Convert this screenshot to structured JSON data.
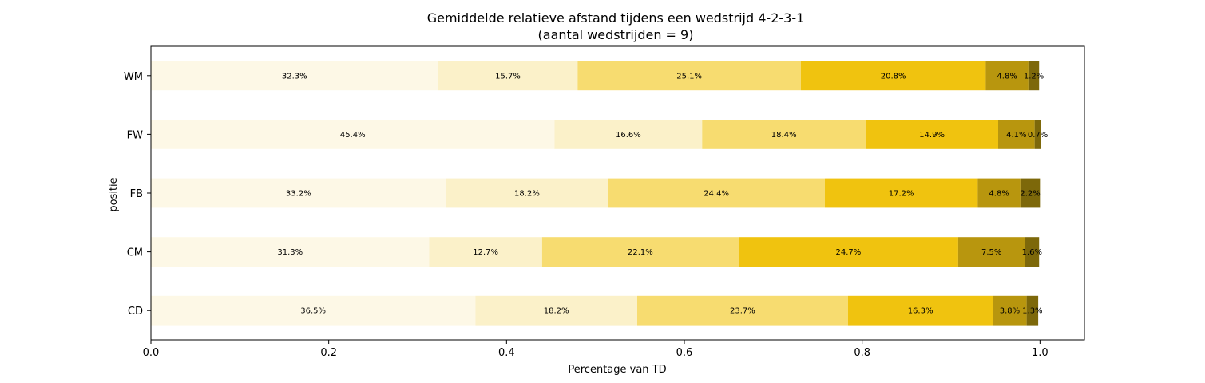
{
  "chart_data": {
    "type": "bar",
    "orientation": "horizontal",
    "stacked": true,
    "title": "Gemiddelde relatieve afstand tijdens een wedstrijd 4-2-3-1",
    "subtitle": "(aantal wedstrijden = 9)",
    "xlabel": "Percentage van TD",
    "ylabel": "positie",
    "xlim": [
      0,
      1.05
    ],
    "xticks": [
      0.0,
      0.2,
      0.4,
      0.6,
      0.8,
      1.0
    ],
    "xtick_labels": [
      "0.0",
      "0.2",
      "0.4",
      "0.6",
      "0.8",
      "1.0"
    ],
    "grid": false,
    "legend": "none",
    "categories": [
      "WM",
      "FW",
      "FB",
      "CM",
      "CD"
    ],
    "series": [
      {
        "color": "#fdf8e6",
        "values": [
          0.323,
          0.454,
          0.332,
          0.313,
          0.365
        ],
        "labels": [
          "32.3%",
          "45.4%",
          "33.2%",
          "31.3%",
          "36.5%"
        ]
      },
      {
        "color": "#fbf1c9",
        "values": [
          0.157,
          0.166,
          0.182,
          0.127,
          0.182
        ],
        "labels": [
          "15.7%",
          "16.6%",
          "18.2%",
          "12.7%",
          "18.2%"
        ]
      },
      {
        "color": "#f7dc70",
        "values": [
          0.251,
          0.184,
          0.244,
          0.221,
          0.237
        ],
        "labels": [
          "25.1%",
          "18.4%",
          "24.4%",
          "22.1%",
          "23.7%"
        ]
      },
      {
        "color": "#f0c30f",
        "values": [
          0.208,
          0.149,
          0.172,
          0.247,
          0.163
        ],
        "labels": [
          "20.8%",
          "14.9%",
          "17.2%",
          "24.7%",
          "16.3%"
        ]
      },
      {
        "color": "#b8960e",
        "values": [
          0.048,
          0.041,
          0.048,
          0.075,
          0.038
        ],
        "labels": [
          "4.8%",
          "4.1%",
          "4.8%",
          "7.5%",
          "3.8%"
        ]
      },
      {
        "color": "#7d680a",
        "values": [
          0.012,
          0.007,
          0.022,
          0.016,
          0.013
        ],
        "labels": [
          "1.2%",
          "0.7%",
          "2.2%",
          "1.6%",
          "1.3%"
        ]
      }
    ]
  }
}
